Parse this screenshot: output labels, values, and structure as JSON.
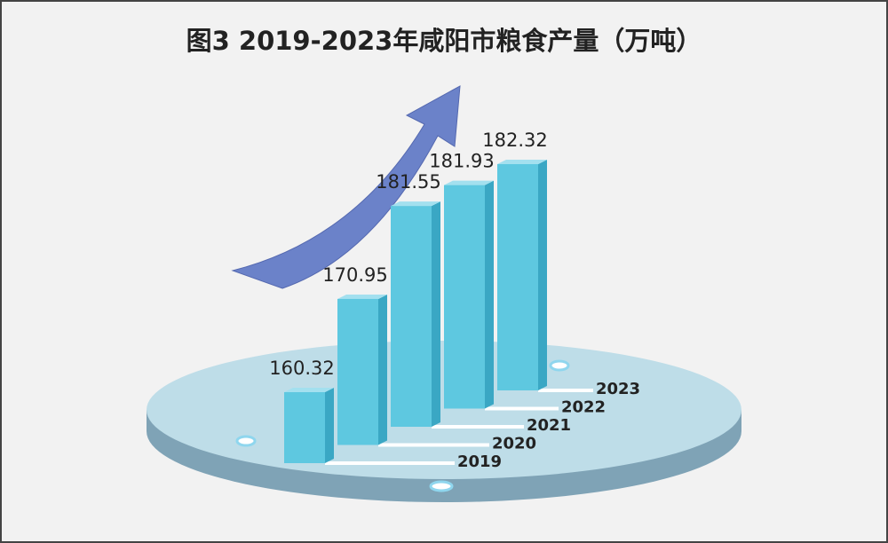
{
  "chart_data": {
    "type": "bar",
    "title": "图3 2019-2023年咸阳市粮食产量（万吨）",
    "categories": [
      "2019",
      "2020",
      "2021",
      "2022",
      "2023"
    ],
    "values": [
      160.32,
      170.95,
      181.55,
      181.93,
      182.32
    ],
    "color": "#5ec8e0"
  }
}
